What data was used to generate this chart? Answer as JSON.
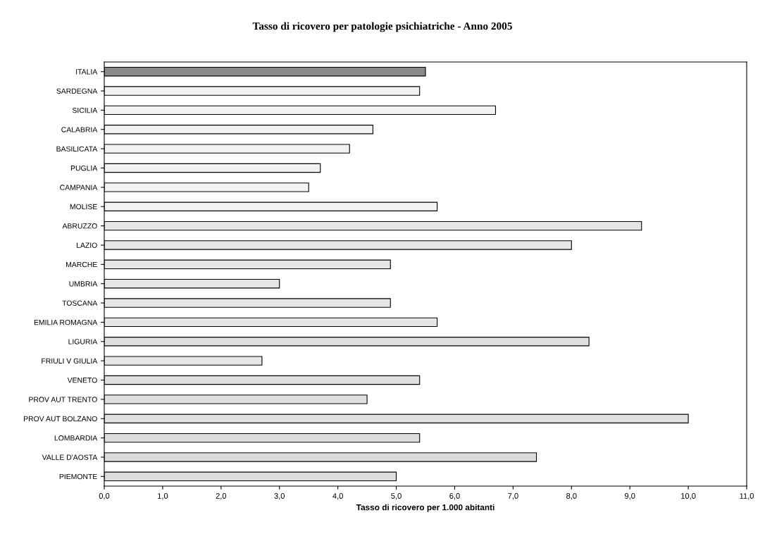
{
  "chart_data": {
    "type": "bar",
    "orientation": "horizontal",
    "title": "Tasso di ricovero per patologie psichiatriche - Anno 2005",
    "xlabel": "Tasso di ricovero per 1.000 abitanti",
    "categories": [
      "ITALIA",
      "SARDEGNA",
      "SICILIA",
      "CALABRIA",
      "BASILICATA",
      "PUGLIA",
      "CAMPANIA",
      "MOLISE",
      "ABRUZZO",
      "LAZIO",
      "MARCHE",
      "UMBRIA",
      "TOSCANA",
      "EMILIA ROMAGNA",
      "LIGURIA",
      "FRIULI V GIULIA",
      "VENETO",
      "PROV AUT TRENTO",
      "PROV AUT BOLZANO",
      "LOMBARDIA",
      "VALLE D'AOSTA",
      "PIEMONTE"
    ],
    "values": [
      5.5,
      5.4,
      6.7,
      4.6,
      4.2,
      3.7,
      3.5,
      5.7,
      9.2,
      8.0,
      4.9,
      3.0,
      4.9,
      5.7,
      8.3,
      2.7,
      5.4,
      4.5,
      10.0,
      5.4,
      7.4,
      5.0
    ],
    "colors": [
      "#8a8a8a",
      "#f2f2f2",
      "#f2f2f2",
      "#f2f2f2",
      "#f2f2f2",
      "#f2f2f2",
      "#f2f2f2",
      "#f2f2f2",
      "#e6e6e6",
      "#e6e6e6",
      "#e6e6e6",
      "#e6e6e6",
      "#e6e6e6",
      "#e6e6e6",
      "#e0e0e0",
      "#e6e6e6",
      "#e0e0e0",
      "#e0e0e0",
      "#e0e0e0",
      "#dcdcdc",
      "#dcdcdc",
      "#dcdcdc"
    ],
    "xlim": [
      0,
      11
    ],
    "xticks": [
      {
        "value": 0,
        "label": "0,0"
      },
      {
        "value": 1,
        "label": "1,0"
      },
      {
        "value": 2,
        "label": "2,0"
      },
      {
        "value": 3,
        "label": "3,0"
      },
      {
        "value": 4,
        "label": "4,0"
      },
      {
        "value": 5,
        "label": "5,0"
      },
      {
        "value": 6,
        "label": "6,0"
      },
      {
        "value": 7,
        "label": "7,0"
      },
      {
        "value": 8,
        "label": "8,0"
      },
      {
        "value": 9,
        "label": "9,0"
      },
      {
        "value": 10,
        "label": "10,0"
      },
      {
        "value": 11,
        "label": "11,0"
      }
    ],
    "grid": false
  }
}
